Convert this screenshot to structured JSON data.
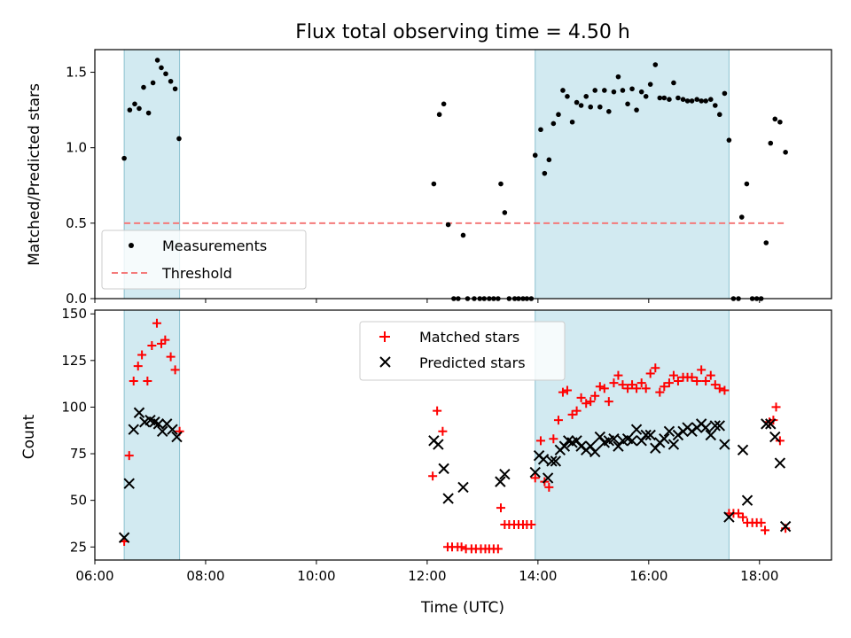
{
  "figure": {
    "title": "Flux total observing time = 4.50 h"
  },
  "chart_data": [
    {
      "type": "scatter",
      "panel": "top",
      "xlabel": "",
      "ylabel": "Matched/Predicted stars",
      "xlim": [
        6.0,
        19.3
      ],
      "ylim": [
        0.0,
        1.65
      ],
      "yticks": [
        0.0,
        0.5,
        1.0,
        1.5
      ],
      "ytick_labels": [
        "0.0",
        "0.5",
        "1.0",
        "1.5"
      ],
      "xticks": [
        6,
        8,
        10,
        12,
        14,
        16,
        18
      ],
      "grid": false,
      "legend_position": "lower-left",
      "shaded_intervals": [
        [
          6.53,
          7.53
        ],
        [
          13.95,
          17.45
        ]
      ],
      "threshold": {
        "name": "Threshold",
        "y": 0.5,
        "x_range": [
          6.53,
          18.5
        ],
        "color": "#f47a7a"
      },
      "series": [
        {
          "name": "Measurements",
          "color": "#000000",
          "points": [
            [
              6.53,
              0.93
            ],
            [
              6.63,
              1.25
            ],
            [
              6.72,
              1.29
            ],
            [
              6.8,
              1.26
            ],
            [
              6.88,
              1.4
            ],
            [
              6.97,
              1.23
            ],
            [
              7.05,
              1.43
            ],
            [
              7.13,
              1.58
            ],
            [
              7.2,
              1.53
            ],
            [
              7.28,
              1.49
            ],
            [
              7.37,
              1.44
            ],
            [
              7.45,
              1.39
            ],
            [
              7.52,
              1.06
            ],
            [
              12.12,
              0.76
            ],
            [
              12.22,
              1.22
            ],
            [
              12.3,
              1.29
            ],
            [
              12.38,
              0.49
            ],
            [
              12.48,
              0.0
            ],
            [
              12.56,
              0.0
            ],
            [
              12.65,
              0.42
            ],
            [
              12.73,
              0.0
            ],
            [
              12.85,
              0.0
            ],
            [
              12.95,
              0.0
            ],
            [
              13.03,
              0.0
            ],
            [
              13.12,
              0.0
            ],
            [
              13.2,
              0.0
            ],
            [
              13.28,
              0.0
            ],
            [
              13.33,
              0.76
            ],
            [
              13.4,
              0.57
            ],
            [
              13.48,
              0.0
            ],
            [
              13.58,
              0.0
            ],
            [
              13.65,
              0.0
            ],
            [
              13.73,
              0.0
            ],
            [
              13.8,
              0.0
            ],
            [
              13.88,
              0.0
            ],
            [
              13.95,
              0.95
            ],
            [
              14.05,
              1.12
            ],
            [
              14.12,
              0.83
            ],
            [
              14.2,
              0.92
            ],
            [
              14.28,
              1.16
            ],
            [
              14.37,
              1.22
            ],
            [
              14.45,
              1.38
            ],
            [
              14.53,
              1.34
            ],
            [
              14.62,
              1.17
            ],
            [
              14.7,
              1.3
            ],
            [
              14.78,
              1.28
            ],
            [
              14.87,
              1.34
            ],
            [
              14.95,
              1.27
            ],
            [
              15.03,
              1.38
            ],
            [
              15.12,
              1.27
            ],
            [
              15.2,
              1.38
            ],
            [
              15.28,
              1.24
            ],
            [
              15.37,
              1.37
            ],
            [
              15.45,
              1.47
            ],
            [
              15.53,
              1.38
            ],
            [
              15.62,
              1.29
            ],
            [
              15.7,
              1.39
            ],
            [
              15.78,
              1.25
            ],
            [
              15.87,
              1.37
            ],
            [
              15.95,
              1.34
            ],
            [
              16.03,
              1.42
            ],
            [
              16.12,
              1.55
            ],
            [
              16.2,
              1.33
            ],
            [
              16.28,
              1.33
            ],
            [
              16.37,
              1.32
            ],
            [
              16.45,
              1.43
            ],
            [
              16.53,
              1.33
            ],
            [
              16.62,
              1.32
            ],
            [
              16.7,
              1.31
            ],
            [
              16.78,
              1.31
            ],
            [
              16.87,
              1.32
            ],
            [
              16.95,
              1.31
            ],
            [
              17.03,
              1.31
            ],
            [
              17.12,
              1.32
            ],
            [
              17.2,
              1.28
            ],
            [
              17.28,
              1.22
            ],
            [
              17.37,
              1.36
            ],
            [
              17.45,
              1.05
            ],
            [
              17.53,
              0.0
            ],
            [
              17.62,
              0.0
            ],
            [
              17.68,
              0.54
            ],
            [
              17.77,
              0.76
            ],
            [
              17.87,
              0.0
            ],
            [
              17.95,
              0.0
            ],
            [
              18.03,
              0.0
            ],
            [
              18.12,
              0.37
            ],
            [
              18.2,
              1.03
            ],
            [
              18.28,
              1.19
            ],
            [
              18.37,
              1.17
            ],
            [
              18.47,
              0.97
            ]
          ]
        }
      ]
    },
    {
      "type": "scatter",
      "panel": "bottom",
      "xlabel": "Time (UTC)",
      "ylabel": "Count",
      "xlim": [
        6.0,
        19.3
      ],
      "ylim": [
        18,
        152
      ],
      "yticks": [
        25,
        50,
        75,
        100,
        125,
        150
      ],
      "xticks": [
        6,
        8,
        10,
        12,
        14,
        16,
        18
      ],
      "xtick_labels": [
        "06:00",
        "08:00",
        "10:00",
        "12:00",
        "14:00",
        "16:00",
        "18:00"
      ],
      "grid": false,
      "legend_position": "upper-center",
      "shaded_intervals": [
        [
          6.53,
          7.53
        ],
        [
          13.95,
          17.45
        ]
      ],
      "series": [
        {
          "name": "Matched stars",
          "marker": "plus",
          "color": "#ff0000",
          "points": [
            [
              6.53,
              28
            ],
            [
              6.62,
              74
            ],
            [
              6.7,
              114
            ],
            [
              6.78,
              122
            ],
            [
              6.85,
              128
            ],
            [
              6.95,
              114
            ],
            [
              7.03,
              133
            ],
            [
              7.12,
              145
            ],
            [
              7.2,
              134
            ],
            [
              7.27,
              136
            ],
            [
              7.37,
              127
            ],
            [
              7.45,
              120
            ],
            [
              7.53,
              87
            ],
            [
              12.1,
              63
            ],
            [
              12.18,
              98
            ],
            [
              12.28,
              87
            ],
            [
              12.37,
              25
            ],
            [
              12.45,
              25
            ],
            [
              12.55,
              25
            ],
            [
              12.62,
              25
            ],
            [
              12.7,
              24
            ],
            [
              12.8,
              24
            ],
            [
              12.88,
              24
            ],
            [
              12.97,
              24
            ],
            [
              13.05,
              24
            ],
            [
              13.12,
              24
            ],
            [
              13.2,
              24
            ],
            [
              13.28,
              24
            ],
            [
              13.33,
              46
            ],
            [
              13.4,
              37
            ],
            [
              13.48,
              37
            ],
            [
              13.57,
              37
            ],
            [
              13.65,
              37
            ],
            [
              13.73,
              37
            ],
            [
              13.8,
              37
            ],
            [
              13.88,
              37
            ],
            [
              13.95,
              62
            ],
            [
              14.05,
              82
            ],
            [
              14.12,
              60
            ],
            [
              14.2,
              57
            ],
            [
              14.28,
              83
            ],
            [
              14.37,
              93
            ],
            [
              14.45,
              108
            ],
            [
              14.53,
              109
            ],
            [
              14.62,
              96
            ],
            [
              14.7,
              98
            ],
            [
              14.78,
              105
            ],
            [
              14.87,
              102
            ],
            [
              14.95,
              103
            ],
            [
              15.03,
              106
            ],
            [
              15.12,
              111
            ],
            [
              15.2,
              110
            ],
            [
              15.28,
              103
            ],
            [
              15.37,
              113
            ],
            [
              15.45,
              117
            ],
            [
              15.53,
              112
            ],
            [
              15.62,
              110
            ],
            [
              15.7,
              112
            ],
            [
              15.78,
              110
            ],
            [
              15.87,
              113
            ],
            [
              15.95,
              110
            ],
            [
              16.03,
              118
            ],
            [
              16.12,
              121
            ],
            [
              16.2,
              108
            ],
            [
              16.28,
              111
            ],
            [
              16.37,
              113
            ],
            [
              16.45,
              117
            ],
            [
              16.53,
              114
            ],
            [
              16.62,
              116
            ],
            [
              16.7,
              116
            ],
            [
              16.78,
              116
            ],
            [
              16.87,
              114
            ],
            [
              16.95,
              120
            ],
            [
              17.03,
              114
            ],
            [
              17.12,
              117
            ],
            [
              17.2,
              112
            ],
            [
              17.28,
              110
            ],
            [
              17.37,
              109
            ],
            [
              17.45,
              43
            ],
            [
              17.53,
              43
            ],
            [
              17.62,
              43
            ],
            [
              17.7,
              41
            ],
            [
              17.78,
              38
            ],
            [
              17.87,
              38
            ],
            [
              17.95,
              38
            ],
            [
              18.03,
              38
            ],
            [
              18.1,
              34
            ],
            [
              18.18,
              92
            ],
            [
              18.25,
              93
            ],
            [
              18.3,
              100
            ],
            [
              18.37,
              82
            ],
            [
              18.47,
              35
            ]
          ]
        },
        {
          "name": "Predicted stars",
          "marker": "x",
          "color": "#000000",
          "points": [
            [
              6.53,
              30
            ],
            [
              6.62,
              59
            ],
            [
              6.7,
              88
            ],
            [
              6.8,
              97
            ],
            [
              6.9,
              92
            ],
            [
              7.0,
              93
            ],
            [
              7.08,
              92
            ],
            [
              7.15,
              91
            ],
            [
              7.22,
              87
            ],
            [
              7.3,
              91
            ],
            [
              7.4,
              88
            ],
            [
              7.48,
              84
            ],
            [
              12.12,
              82
            ],
            [
              12.2,
              80
            ],
            [
              12.3,
              67
            ],
            [
              12.38,
              51
            ],
            [
              12.65,
              57
            ],
            [
              13.32,
              60
            ],
            [
              13.4,
              64
            ],
            [
              13.95,
              65
            ],
            [
              14.02,
              74
            ],
            [
              14.1,
              72
            ],
            [
              14.18,
              62
            ],
            [
              14.25,
              71
            ],
            [
              14.32,
              71
            ],
            [
              14.4,
              77
            ],
            [
              14.48,
              79
            ],
            [
              14.55,
              82
            ],
            [
              14.62,
              81
            ],
            [
              14.7,
              82
            ],
            [
              14.78,
              79
            ],
            [
              14.87,
              77
            ],
            [
              14.95,
              79
            ],
            [
              15.03,
              76
            ],
            [
              15.12,
              84
            ],
            [
              15.2,
              81
            ],
            [
              15.28,
              82
            ],
            [
              15.37,
              83
            ],
            [
              15.45,
              79
            ],
            [
              15.53,
              82
            ],
            [
              15.62,
              83
            ],
            [
              15.7,
              82
            ],
            [
              15.78,
              88
            ],
            [
              15.87,
              82
            ],
            [
              15.95,
              85
            ],
            [
              16.03,
              85
            ],
            [
              16.12,
              78
            ],
            [
              16.2,
              81
            ],
            [
              16.28,
              83
            ],
            [
              16.37,
              87
            ],
            [
              16.45,
              80
            ],
            [
              16.53,
              85
            ],
            [
              16.62,
              87
            ],
            [
              16.7,
              89
            ],
            [
              16.78,
              87
            ],
            [
              16.87,
              89
            ],
            [
              16.95,
              91
            ],
            [
              17.03,
              89
            ],
            [
              17.12,
              85
            ],
            [
              17.2,
              90
            ],
            [
              17.28,
              90
            ],
            [
              17.37,
              80
            ],
            [
              17.45,
              41
            ],
            [
              17.7,
              77
            ],
            [
              17.78,
              50
            ],
            [
              18.12,
              91
            ],
            [
              18.2,
              91
            ],
            [
              18.28,
              84
            ],
            [
              18.37,
              70
            ],
            [
              18.47,
              36
            ]
          ]
        }
      ]
    }
  ]
}
